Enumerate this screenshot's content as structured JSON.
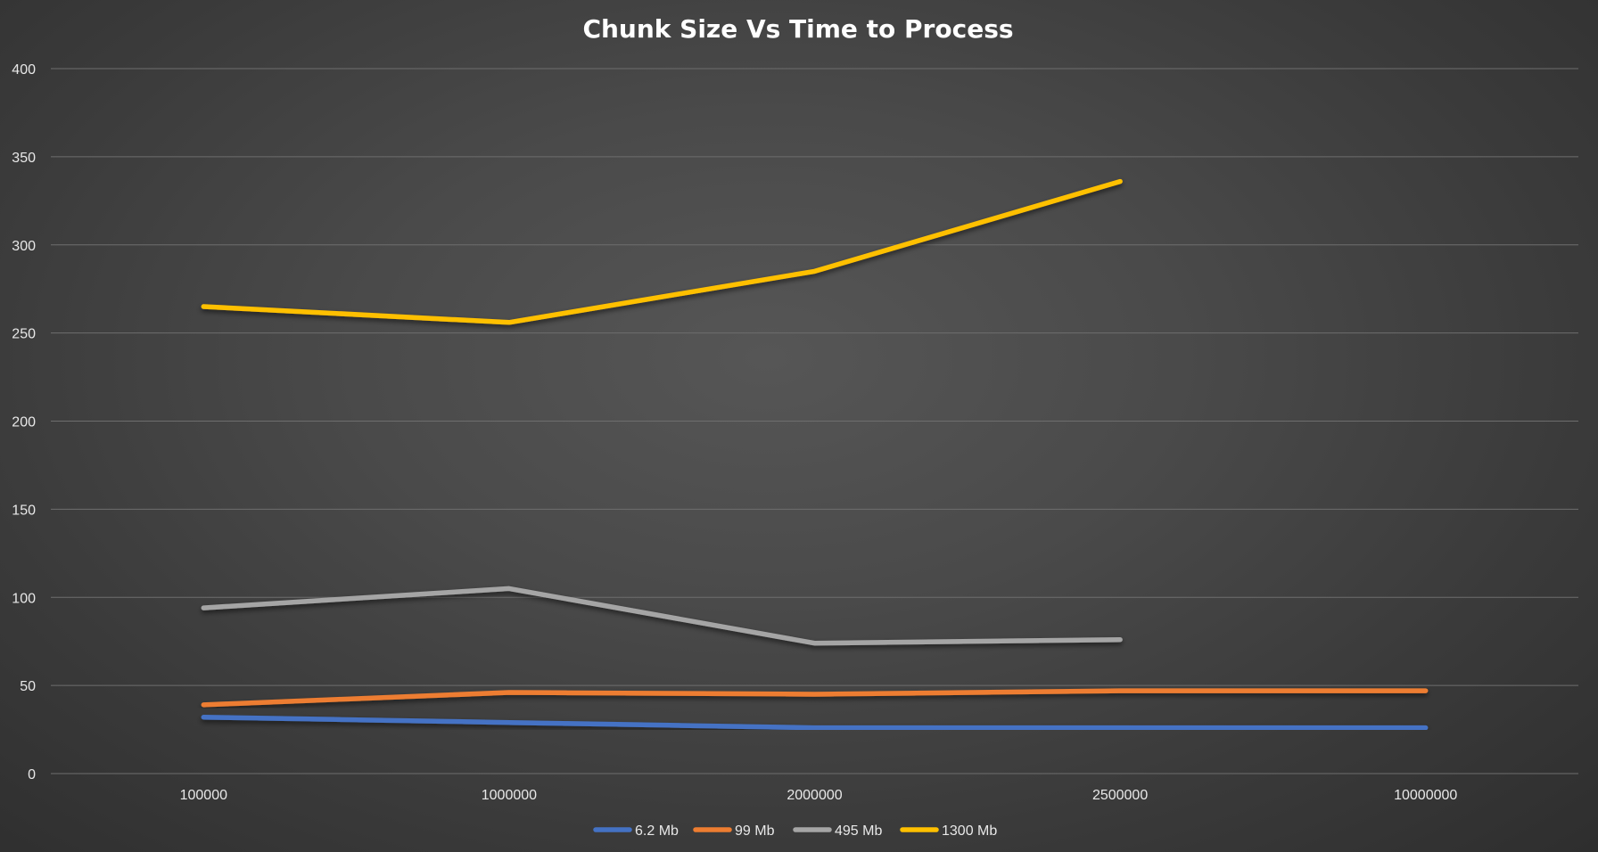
{
  "chart_data": {
    "type": "line",
    "title": "Chunk Size Vs Time to Process",
    "xlabel": "",
    "ylabel": "",
    "categories": [
      "100000",
      "1000000",
      "2000000",
      "2500000",
      "10000000"
    ],
    "ylim": [
      0,
      400
    ],
    "yticks": [
      0,
      50,
      100,
      150,
      200,
      250,
      300,
      350,
      400
    ],
    "grid": true,
    "legend_position": "bottom",
    "series": [
      {
        "name": "6.2 Mb",
        "color": "#4472c4",
        "values": [
          32,
          29,
          26,
          26,
          26
        ]
      },
      {
        "name": "99 Mb",
        "color": "#ed7d31",
        "values": [
          39,
          46,
          45,
          47,
          47
        ]
      },
      {
        "name": "495 Mb",
        "color": "#a5a5a5",
        "values": [
          94,
          105,
          74,
          76,
          null
        ]
      },
      {
        "name": "1300 Mb",
        "color": "#ffc000",
        "values": [
          265,
          256,
          285,
          336,
          null
        ]
      }
    ]
  }
}
